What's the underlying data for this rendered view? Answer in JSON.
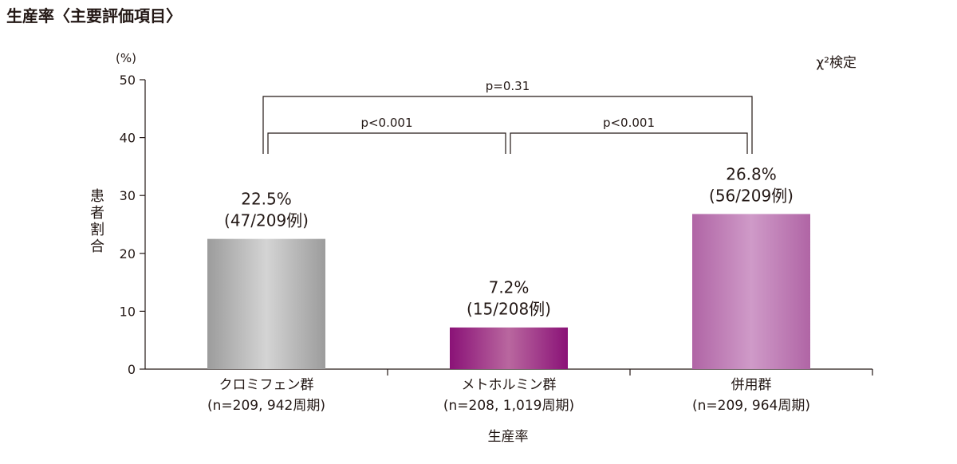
{
  "page_title": "生産率〈主要評価項目〉",
  "colors": {
    "axis": "#231815",
    "bar_clomiphene": [
      "#9c9c9c",
      "#d4d4d4"
    ],
    "bar_metformin": [
      "#8a1277",
      "#b9679f"
    ],
    "bar_combination": [
      "#b065a5",
      "#cf9ac8"
    ]
  },
  "chart_data": {
    "type": "bar",
    "ylabel": "患者割合",
    "yunit": "(%)",
    "xlabel": "生産率",
    "ylim": [
      0,
      50
    ],
    "yticks": [
      "0",
      "10",
      "20",
      "30",
      "40",
      "50"
    ],
    "test_label": "χ²検定",
    "categories": [
      {
        "name": "クロミフェン群",
        "sub": "(n=209, 942周期)"
      },
      {
        "name": "メトホルミン群",
        "sub": "(n=208, 1,019周期)"
      },
      {
        "name": "併用群",
        "sub": "(n=209, 964周期)"
      }
    ],
    "values": [
      22.5,
      7.2,
      26.8
    ],
    "data_labels": [
      {
        "pct": "22.5%",
        "count": "(47/209例)"
      },
      {
        "pct": "7.2%",
        "count": "(15/208例)"
      },
      {
        "pct": "26.8%",
        "count": "(56/209例)"
      }
    ],
    "comparisons": [
      {
        "from": 0,
        "to": 1,
        "label": "p<0.001"
      },
      {
        "from": 1,
        "to": 2,
        "label": "p<0.001"
      },
      {
        "from": 0,
        "to": 2,
        "label": "p=0.31"
      }
    ]
  }
}
